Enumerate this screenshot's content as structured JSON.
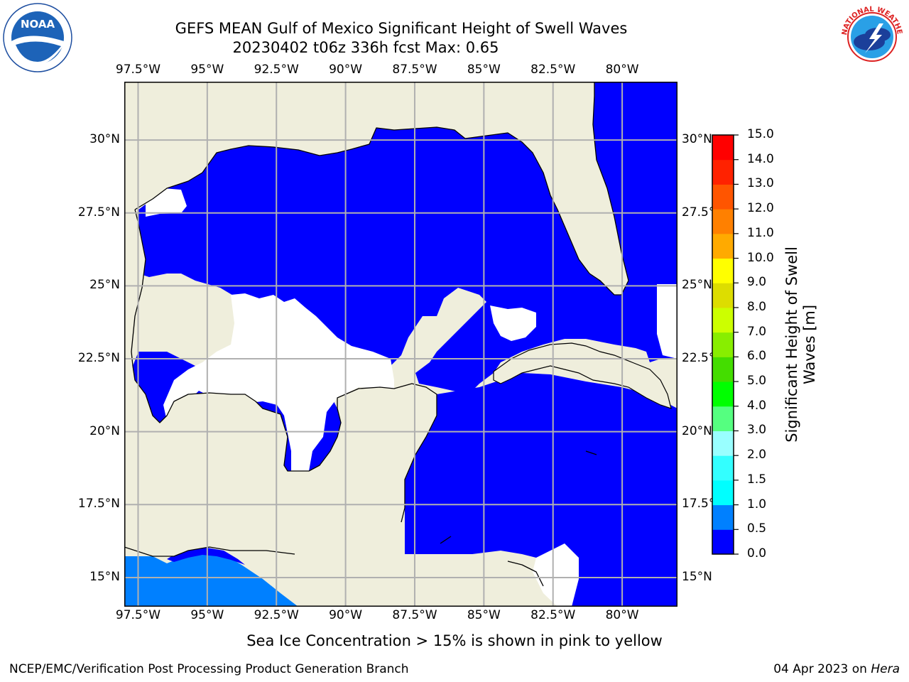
{
  "header": {
    "title_line1": "GEFS MEAN Gulf of Mexico Significant Height of Swell Waves",
    "title_line2": "20230402 t06z 336h fcst   Max: 0.65"
  },
  "logos": {
    "left": {
      "name": "NOAA",
      "ring_text": "NATIONAL OCEANIC AND ATMOSPHERIC ADMINISTRATION · U.S. DEPARTMENT OF COMMERCE"
    },
    "right": {
      "name": "NATIONAL WEATHER SERVICE"
    }
  },
  "map": {
    "lon_labels": [
      "97.5°W",
      "95°W",
      "92.5°W",
      "90°W",
      "87.5°W",
      "85°W",
      "82.5°W",
      "80°W"
    ],
    "lon_values": [
      -97.5,
      -95,
      -92.5,
      -90,
      -87.5,
      -85,
      -82.5,
      -80
    ],
    "lat_labels": [
      "30°N",
      "27.5°N",
      "25°N",
      "22.5°N",
      "20°N",
      "17.5°N",
      "15°N"
    ],
    "lat_values": [
      30,
      27.5,
      25,
      22.5,
      20,
      17.5,
      15
    ],
    "lon_range": [
      -98,
      -78
    ],
    "lat_range": [
      14,
      32
    ],
    "land_color": "#efeedc",
    "grid_color": "#b0b0b0",
    "grid": true
  },
  "colorbar": {
    "label": "Significant Height of Swell Waves [m]",
    "tick_labels": [
      "0.0",
      "0.5",
      "1.0",
      "1.5",
      "2.0",
      "3.0",
      "4.0",
      "5.0",
      "6.0",
      "7.0",
      "8.0",
      "9.0",
      "10.0",
      "11.0",
      "12.0",
      "13.0",
      "14.0",
      "15.0"
    ],
    "colors": [
      "#0000ff",
      "#0080ff",
      "#00ffff",
      "#33ffff",
      "#66ffff",
      "#99ffff",
      "#55ff80",
      "#00ff00",
      "#44dd00",
      "#88ee00",
      "#ccff00",
      "#dddd00",
      "#ffff00",
      "#ffdd00",
      "#ffaa00",
      "#ff8000",
      "#ff5500",
      "#ff2200",
      "#ff0000"
    ]
  },
  "footer": {
    "note": "Sea Ice Concentration > 15% is shown in pink to yellow",
    "credit_left": "NCEP/EMC/Verification Post Processing Product Generation Branch",
    "date": "04 Apr 2023 on ",
    "host": "Hera"
  }
}
